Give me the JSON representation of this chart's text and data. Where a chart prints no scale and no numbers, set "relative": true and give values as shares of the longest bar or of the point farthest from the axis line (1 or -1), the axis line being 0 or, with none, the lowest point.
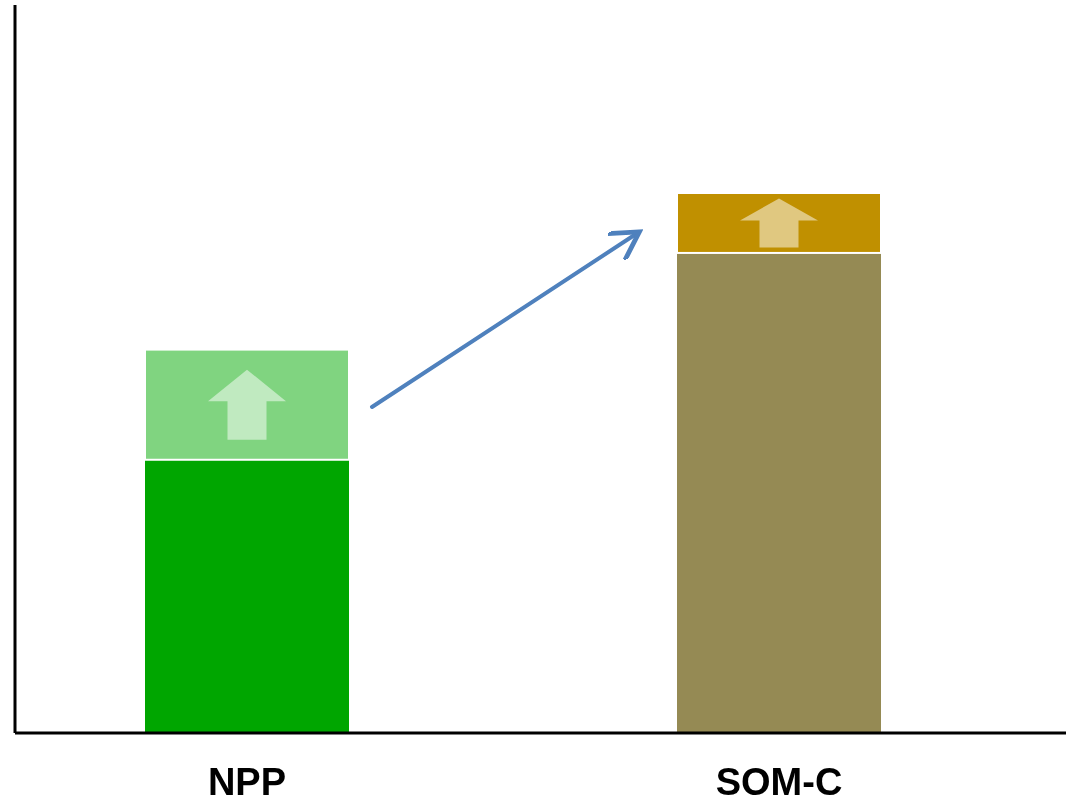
{
  "chart_data": {
    "type": "bar",
    "relative": true,
    "stacked": true,
    "categories": [
      "NPP",
      "SOM-C"
    ],
    "series": [
      {
        "colors": [
          "#00a600",
          "#958a54"
        ],
        "values": [
          0.506,
          0.889
        ]
      },
      {
        "colors": [
          "#80d480",
          "#c09000"
        ],
        "values": [
          0.204,
          0.111
        ]
      }
    ]
  }
}
